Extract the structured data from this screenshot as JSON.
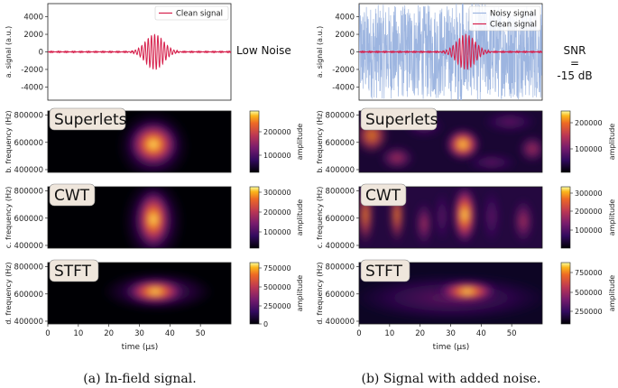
{
  "colors": {
    "clean": "#d6204c",
    "noisy": "#9db5e0",
    "axis": "#222222"
  },
  "captions": {
    "left": "(a) In-field signal.",
    "right": "(b) Signal with added noise."
  },
  "annotations": {
    "low_noise": "Low Noise",
    "snr_1": "SNR",
    "snr_2": "=",
    "snr_3": "-15 dB"
  },
  "chart_data": [
    {
      "type": "line",
      "column": "left",
      "ylabel": "a. signal (a.u.)",
      "ylim": [
        -5500,
        5500
      ],
      "yticks": [
        -4000,
        -2000,
        0,
        2000,
        4000
      ],
      "xlim": [
        0,
        60
      ],
      "series": [
        {
          "name": "Clean signal",
          "description": "Gaussian-windowed oscillation centred at ~35 µs, peak amplitude ~2000"
        }
      ],
      "grid": false,
      "legend": "top-right"
    },
    {
      "type": "heatmap",
      "column": "left",
      "method": "Superlets",
      "ylabel": "b. frequency (Hz)",
      "yticks": [
        400000,
        600000,
        800000
      ],
      "ylim": [
        380000,
        830000
      ],
      "xlim": [
        0,
        60
      ],
      "peak": {
        "x": 35,
        "y": 580000
      },
      "colorbar": {
        "label": "amplitude",
        "ticks": [
          100000,
          200000
        ]
      }
    },
    {
      "type": "heatmap",
      "column": "left",
      "method": "CWT",
      "ylabel": "c. frequency (Hz)",
      "yticks": [
        400000,
        600000,
        800000
      ],
      "ylim": [
        380000,
        830000
      ],
      "xlim": [
        0,
        60
      ],
      "peak": {
        "x": 35,
        "y": 590000
      },
      "colorbar": {
        "label": "amplitude",
        "ticks": [
          100000,
          200000,
          300000
        ]
      }
    },
    {
      "type": "heatmap",
      "column": "left",
      "method": "STFT",
      "ylabel": "d. frequency (Hz)",
      "yticks": [
        400000,
        600000,
        800000
      ],
      "ylim": [
        380000,
        830000
      ],
      "xlim": [
        0,
        60
      ],
      "xticks": [
        0,
        10,
        20,
        30,
        40,
        50
      ],
      "xlabel": "time (μs)",
      "peak": {
        "x": 35,
        "y": 630000
      },
      "colorbar": {
        "label": "amplitude",
        "ticks": [
          0,
          250000,
          500000,
          750000
        ]
      }
    },
    {
      "type": "line",
      "column": "right",
      "ylabel": "a. signal (a.u.)",
      "ylim": [
        -5500,
        5500
      ],
      "yticks": [
        -4000,
        -2000,
        0,
        2000,
        4000
      ],
      "xlim": [
        0,
        60
      ],
      "series": [
        {
          "name": "Noisy signal",
          "description": "broadband noise spanning roughly ±5000"
        },
        {
          "name": "Clean signal",
          "description": "Gaussian-windowed oscillation centred at ~35 µs, peak amplitude ~2000"
        }
      ],
      "grid": false,
      "legend": "top-right"
    },
    {
      "type": "heatmap",
      "column": "right",
      "method": "Superlets",
      "ylabel": "b. frequency (Hz)",
      "yticks": [
        400000,
        600000,
        800000
      ],
      "ylim": [
        380000,
        830000
      ],
      "xlim": [
        0,
        60
      ],
      "peak": {
        "x": 34,
        "y": 580000
      },
      "colorbar": {
        "label": "amplitude",
        "ticks": [
          100000,
          200000
        ]
      }
    },
    {
      "type": "heatmap",
      "column": "right",
      "method": "CWT",
      "ylabel": "c. frequency (Hz)",
      "yticks": [
        400000,
        600000,
        800000
      ],
      "ylim": [
        380000,
        830000
      ],
      "xlim": [
        0,
        60
      ],
      "peak": {
        "x": 33,
        "y": 620000
      },
      "colorbar": {
        "label": "amplitude",
        "ticks": [
          100000,
          200000,
          300000
        ]
      }
    },
    {
      "type": "heatmap",
      "column": "right",
      "method": "STFT",
      "ylabel": "d. frequency (Hz)",
      "yticks": [
        400000,
        600000,
        800000
      ],
      "ylim": [
        380000,
        830000
      ],
      "xlim": [
        0,
        60
      ],
      "xticks": [
        0,
        10,
        20,
        30,
        40,
        50
      ],
      "xlabel": "time (μs)",
      "peak": {
        "x": 35,
        "y": 630000
      },
      "colorbar": {
        "label": "amplitude",
        "ticks": [
          250000,
          500000,
          750000
        ]
      }
    }
  ]
}
